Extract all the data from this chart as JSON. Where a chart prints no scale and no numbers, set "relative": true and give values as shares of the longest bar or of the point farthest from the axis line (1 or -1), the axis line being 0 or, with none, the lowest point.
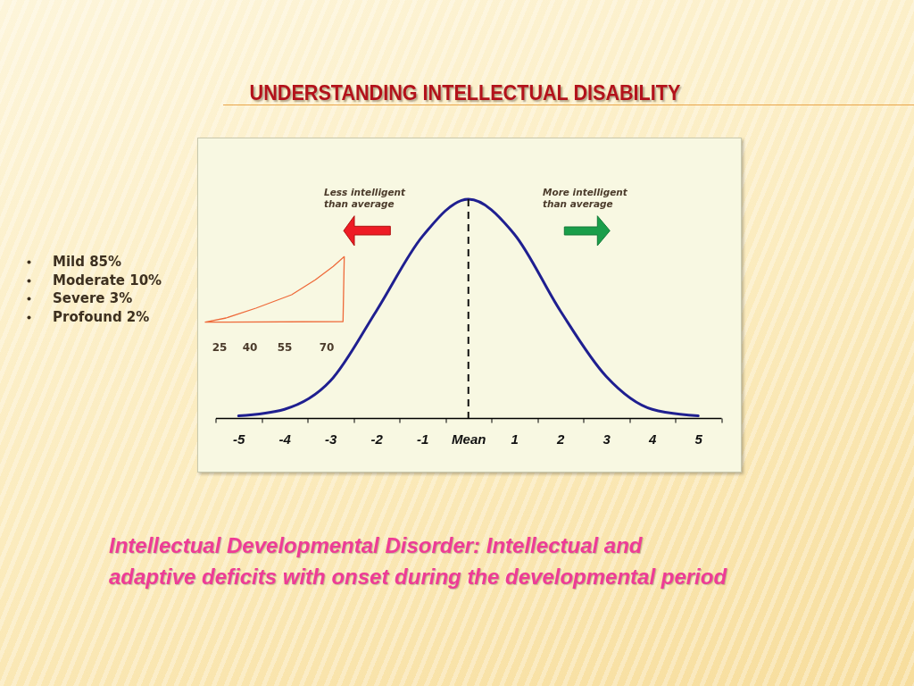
{
  "chart_data": {
    "type": "line",
    "title": "UNDERSTANDING INTELLECTUAL DISABILITY",
    "relative": true,
    "categories": [
      "-5",
      "-4",
      "-3",
      "-2",
      "-1",
      "Mean",
      "1",
      "2",
      "3",
      "4",
      "5"
    ],
    "series": [
      {
        "color": "#1f1f90",
        "values": [
          0.01,
          0.04,
          0.17,
          0.49,
          0.83,
          1,
          0.84,
          0.49,
          0.19,
          0.04,
          0.01
        ]
      }
    ],
    "ref_lines": [
      {
        "axis": "x",
        "value": "Mean",
        "color": "#111111",
        "line_style": "dashed"
      }
    ],
    "annotations": [
      "Less intelligent than average",
      "More intelligent than average",
      "25",
      "40",
      "55",
      "70",
      "Mild 85%",
      "Moderate 10%",
      "Severe 3%",
      "Profound 2%",
      "Intellectual Developmental Disorder: Intellectual and\nadaptive deficits with onset during the developmental period"
    ]
  }
}
